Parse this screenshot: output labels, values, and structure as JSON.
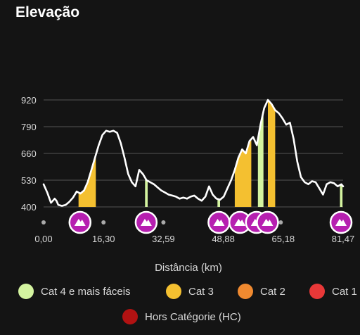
{
  "header": {
    "title": "Elevação"
  },
  "colors": {
    "background": "#141414",
    "line": "#ffffff",
    "grid": "#555555",
    "tick_text": "#d8d8d8",
    "climb_marker": "#b61fb0",
    "climb_marker_border": "#ffffff",
    "cat4": "#d4f4a0",
    "cat3": "#f4c030",
    "cat2": "#f08a30",
    "cat1": "#e83838",
    "hc": "#b21212"
  },
  "chart_data": {
    "type": "area",
    "title": "Elevação",
    "xlabel": "Distância (km)",
    "ylabel": "",
    "x_ticks": [
      "0,00",
      "16,30",
      "32,59",
      "48,88",
      "65,18",
      "81,47"
    ],
    "y_ticks": [
      400,
      530,
      660,
      790,
      920
    ],
    "xlim": [
      0,
      81.47
    ],
    "ylim": [
      400,
      920
    ],
    "grid": true,
    "profile": {
      "x": [
        0,
        1,
        2,
        3,
        3.5,
        4,
        5,
        6,
        7,
        8,
        9,
        10,
        11,
        12,
        13,
        14,
        15,
        16,
        17,
        18,
        19,
        20,
        21,
        22,
        23,
        24,
        25,
        26,
        27,
        28,
        29,
        30,
        31,
        32,
        33,
        34,
        35,
        36,
        37,
        38,
        39,
        40,
        41,
        42,
        43,
        44,
        45,
        46,
        47,
        48,
        49,
        50,
        51,
        52,
        53,
        54,
        55,
        56,
        57,
        58,
        59,
        60,
        61,
        62,
        63,
        64,
        65,
        66,
        67,
        68,
        69,
        70,
        71,
        72,
        73,
        74,
        75,
        76,
        77,
        78,
        79,
        80,
        81,
        81.47
      ],
      "y": [
        510,
        470,
        420,
        440,
        430,
        410,
        405,
        410,
        425,
        445,
        475,
        465,
        480,
        520,
        580,
        640,
        700,
        750,
        770,
        765,
        770,
        760,
        710,
        640,
        560,
        520,
        500,
        580,
        560,
        530,
        520,
        510,
        495,
        480,
        470,
        460,
        455,
        450,
        440,
        445,
        440,
        450,
        455,
        440,
        430,
        450,
        500,
        460,
        440,
        435,
        450,
        490,
        530,
        580,
        640,
        680,
        660,
        720,
        740,
        700,
        800,
        880,
        920,
        900,
        870,
        855,
        830,
        800,
        810,
        730,
        620,
        545,
        520,
        510,
        525,
        520,
        490,
        460,
        510,
        520,
        515,
        500,
        510,
        500
      ]
    },
    "climbs": [
      {
        "category": "Cat 3",
        "start": 9.5,
        "end": 14.2
      },
      {
        "category": "Cat 4 e mais fáceis",
        "start": 27.6,
        "end": 28.3
      },
      {
        "category": "Cat 4 e mais fáceis",
        "start": 47.3,
        "end": 48.0
      },
      {
        "category": "Cat 3",
        "start": 52.0,
        "end": 56.5
      },
      {
        "category": "Cat 4 e mais fáceis",
        "start": 58.3,
        "end": 59.8
      },
      {
        "category": "Cat 3",
        "start": 61.0,
        "end": 63.0
      },
      {
        "category": "Cat 4 e mais fáceis",
        "start": 80.6,
        "end": 81.3
      }
    ],
    "climb_markers": [
      9.9,
      27.9,
      47.7,
      53.4,
      57.9,
      60.9,
      80.9
    ],
    "axis_dots": [
      0,
      16.3,
      32.59,
      64.5
    ]
  },
  "legend": {
    "items": [
      {
        "label": "Cat 4 e mais fáceis",
        "color": "#d4f4a0"
      },
      {
        "label": "Cat 3",
        "color": "#f4c030"
      },
      {
        "label": "Cat 2",
        "color": "#f08a30"
      },
      {
        "label": "Cat 1",
        "color": "#e83838"
      },
      {
        "label": "Hors Catégorie (HC)",
        "color": "#b21212"
      }
    ]
  }
}
